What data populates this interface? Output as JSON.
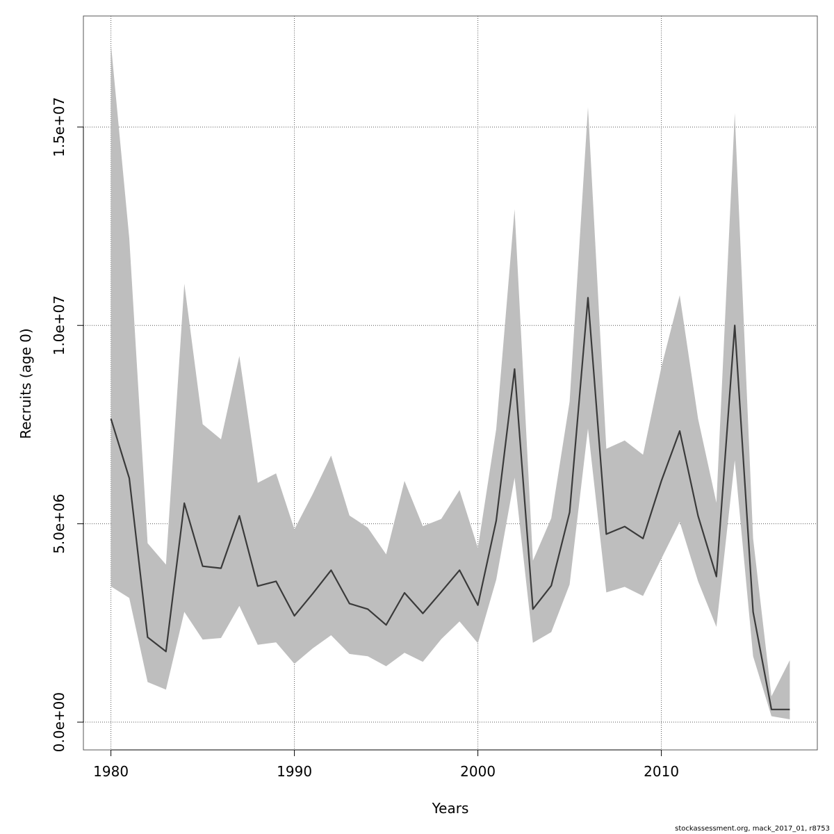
{
  "chart_data": {
    "type": "line",
    "title": "",
    "xlabel": "Years",
    "ylabel": "Recruits (age 0)",
    "xlim": [
      1978.5,
      2018.5
    ],
    "ylim": [
      -700000,
      17800000
    ],
    "grid": true,
    "x_ticks": [
      1980,
      1990,
      2000,
      2010
    ],
    "x_tick_labels": [
      "1980",
      "1990",
      "2000",
      "2010"
    ],
    "y_ticks": [
      0,
      5000000,
      10000000,
      15000000
    ],
    "y_tick_labels": [
      "0.0e+00",
      "5.0e+06",
      "1.0e+07",
      "1.5e+07"
    ],
    "x": [
      1980,
      1981,
      1982,
      1983,
      1984,
      1985,
      1986,
      1987,
      1988,
      1989,
      1990,
      1991,
      1992,
      1993,
      1994,
      1995,
      1996,
      1997,
      1998,
      1999,
      2000,
      2001,
      2002,
      2003,
      2004,
      2005,
      2006,
      2007,
      2008,
      2009,
      2010,
      2011,
      2012,
      2013,
      2014,
      2015,
      2016,
      2017
    ],
    "series": [
      {
        "values": [
          7650000,
          6150000,
          2140000,
          1780000,
          5520000,
          3930000,
          3880000,
          5200000,
          3430000,
          3550000,
          2680000,
          3240000,
          3830000,
          2990000,
          2850000,
          2450000,
          3260000,
          2740000,
          3280000,
          3830000,
          2950000,
          5080000,
          8900000,
          2850000,
          3440000,
          5290000,
          10700000,
          4740000,
          4930000,
          4630000,
          6080000,
          7340000,
          5200000,
          3670000,
          10000000,
          2780000,
          320000,
          320000
        ]
      }
    ],
    "band": {
      "lower": [
        3420000,
        3130000,
        1010000,
        820000,
        2780000,
        2080000,
        2120000,
        2930000,
        1950000,
        2010000,
        1470000,
        1860000,
        2190000,
        1720000,
        1660000,
        1410000,
        1750000,
        1520000,
        2090000,
        2540000,
        1990000,
        3590000,
        6160000,
        2000000,
        2270000,
        3470000,
        7400000,
        3270000,
        3410000,
        3180000,
        4120000,
        5050000,
        3550000,
        2400000,
        6600000,
        1660000,
        150000,
        70000
      ],
      "upper": [
        17100000,
        12200000,
        4510000,
        3970000,
        11050000,
        7510000,
        7130000,
        9230000,
        6030000,
        6270000,
        4860000,
        5750000,
        6720000,
        5210000,
        4900000,
        4230000,
        6080000,
        4940000,
        5120000,
        5850000,
        4390000,
        7390000,
        12930000,
        4070000,
        5140000,
        8080000,
        15500000,
        6890000,
        7100000,
        6740000,
        8950000,
        10760000,
        7650000,
        5530000,
        15350000,
        4630000,
        650000,
        1560000
      ]
    },
    "colors": {
      "band": "#bebebe",
      "line": "#3a3a3a",
      "grid": "#555555",
      "box": "#555555"
    }
  },
  "footer": "stockassessment.org, mack_2017_01, r8753"
}
